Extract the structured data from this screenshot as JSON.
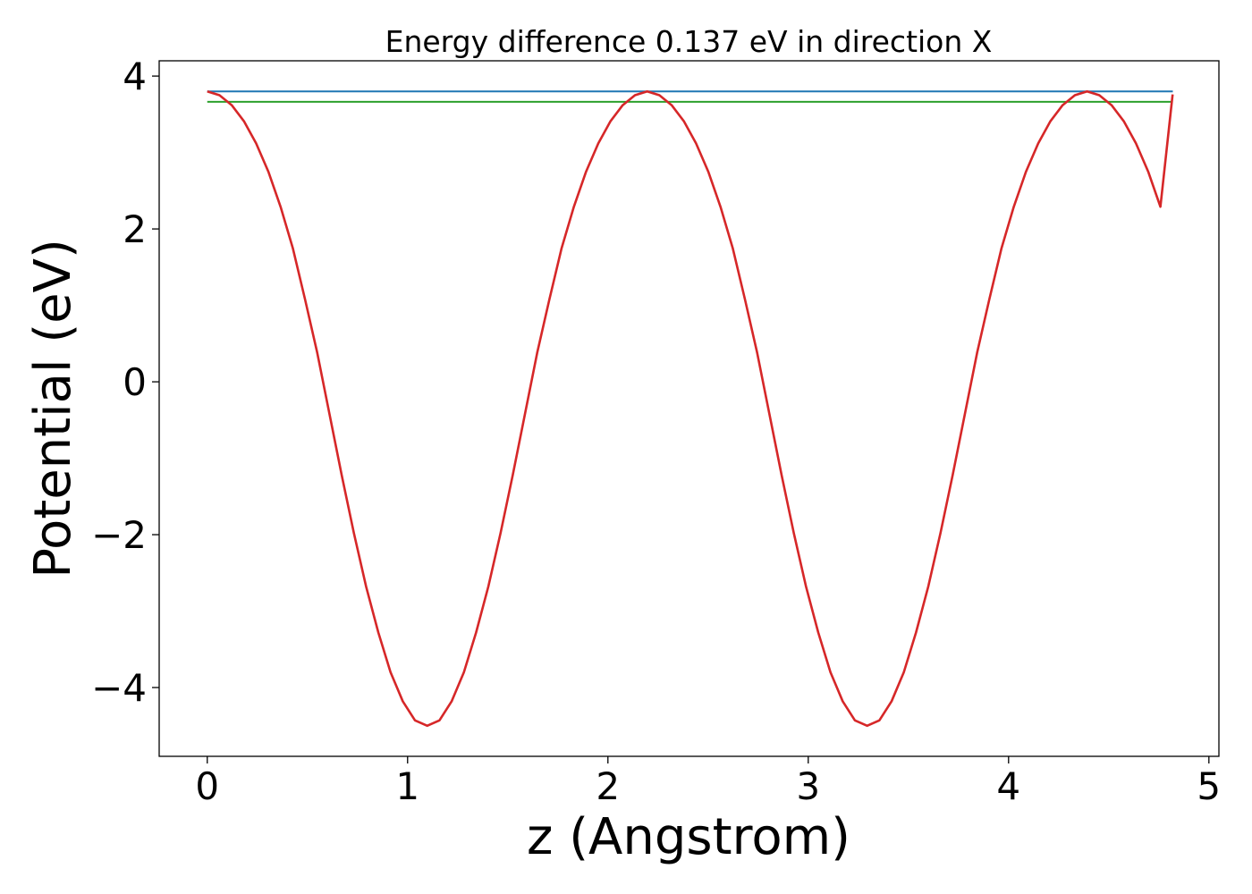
{
  "chart_data": {
    "type": "line",
    "title": "Energy difference 0.137 eV in direction X",
    "xlabel": "z (Angstrom)",
    "ylabel": "Potential (eV)",
    "xlim": [
      -0.24,
      5.05
    ],
    "ylim": [
      -4.9,
      4.2
    ],
    "xticks": [
      0,
      1,
      2,
      3,
      4,
      5
    ],
    "yticks": [
      -4,
      -2,
      0,
      2,
      4
    ],
    "ytick_labels": [
      "−4",
      "−2",
      "0",
      "2",
      "4"
    ],
    "grid": false,
    "legend": "none",
    "series": [
      {
        "color": "#d62728",
        "x": [
          0,
          0.061,
          0.122,
          0.183,
          0.244,
          0.305,
          0.366,
          0.427,
          0.488,
          0.549,
          0.61,
          0.671,
          0.732,
          0.793,
          0.854,
          0.915,
          0.976,
          1.037,
          1.098,
          1.159,
          1.22,
          1.281,
          1.342,
          1.403,
          1.464,
          1.525,
          1.586,
          1.647,
          1.708,
          1.769,
          1.83,
          1.891,
          1.952,
          2.013,
          2.074,
          2.135,
          2.196,
          2.257,
          2.318,
          2.379,
          2.44,
          2.501,
          2.562,
          2.623,
          2.684,
          2.745,
          2.806,
          2.867,
          2.928,
          2.989,
          3.05,
          3.111,
          3.172,
          3.233,
          3.294,
          3.355,
          3.416,
          3.477,
          3.538,
          3.599,
          3.66,
          3.721,
          3.782,
          3.843,
          3.904,
          3.965,
          4.026,
          4.087,
          4.148,
          4.209,
          4.27,
          4.331,
          4.392,
          4.453,
          4.514,
          4.575,
          4.636,
          4.697,
          4.758,
          4.819
        ],
        "y": [
          3.8,
          3.75,
          3.62,
          3.41,
          3.12,
          2.75,
          2.29,
          1.75,
          1.08,
          0.38,
          -0.42,
          -1.22,
          -1.98,
          -2.68,
          -3.28,
          -3.8,
          -4.18,
          -4.43,
          -4.5,
          -4.43,
          -4.18,
          -3.8,
          -3.28,
          -2.68,
          -1.98,
          -1.22,
          -0.42,
          0.38,
          1.08,
          1.75,
          2.29,
          2.75,
          3.12,
          3.41,
          3.62,
          3.75,
          3.8,
          3.75,
          3.62,
          3.41,
          3.12,
          2.75,
          2.29,
          1.75,
          1.08,
          0.38,
          -0.42,
          -1.22,
          -1.98,
          -2.68,
          -3.28,
          -3.8,
          -4.18,
          -4.43,
          -4.5,
          -4.43,
          -4.18,
          -3.8,
          -3.28,
          -2.68,
          -1.98,
          -1.22,
          -0.42,
          0.38,
          1.08,
          1.75,
          2.29,
          2.75,
          3.12,
          3.41,
          3.62,
          3.75,
          3.8,
          3.75,
          3.62,
          3.41,
          3.12,
          2.75,
          2.29,
          3.76
        ]
      },
      {
        "color": "#1f77b4",
        "x": [
          0,
          4.82
        ],
        "y": [
          3.8,
          3.8
        ]
      },
      {
        "color": "#2ca02c",
        "x": [
          0,
          4.82
        ],
        "y": [
          3.663,
          3.663
        ]
      }
    ]
  }
}
